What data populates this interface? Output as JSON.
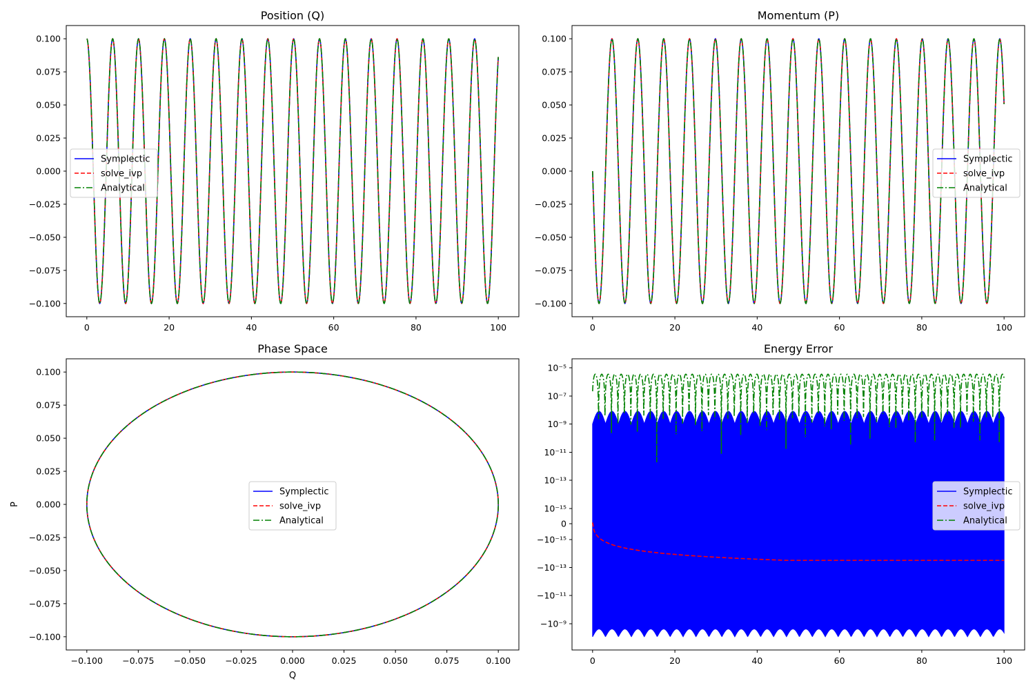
{
  "chart_data": [
    {
      "id": "position",
      "type": "line",
      "title": "Position (Q)",
      "xlabel": "",
      "ylabel": "",
      "xlim": [
        -5,
        105
      ],
      "ylim": [
        -0.11,
        0.11
      ],
      "xticks": [
        0,
        20,
        40,
        60,
        80,
        100
      ],
      "xtick_labels": [
        "0",
        "20",
        "40",
        "60",
        "80",
        "100"
      ],
      "yticks": [
        0.1,
        0.075,
        0.05,
        0.025,
        0.0,
        -0.025,
        -0.05,
        -0.075,
        -0.1
      ],
      "ytick_labels": [
        "0.100",
        "0.075",
        "0.050",
        "0.025",
        "0.000",
        "−0.025",
        "−0.050",
        "−0.075",
        "−0.100"
      ],
      "grid": false,
      "legend": "center-left",
      "x_range": [
        0,
        100
      ],
      "series": [
        {
          "name": "Symplectic",
          "style": "solid",
          "color": "#0000ff",
          "formula": "0.1*cos(t)"
        },
        {
          "name": "solve_ivp",
          "style": "dashed",
          "color": "#ff0000",
          "formula": "0.1*cos(t)"
        },
        {
          "name": "Analytical",
          "style": "dashdot",
          "color": "#008000",
          "formula": "0.1*cos(t)"
        }
      ]
    },
    {
      "id": "momentum",
      "type": "line",
      "title": "Momentum (P)",
      "xlabel": "",
      "ylabel": "",
      "xlim": [
        -5,
        105
      ],
      "ylim": [
        -0.11,
        0.11
      ],
      "xticks": [
        0,
        20,
        40,
        60,
        80,
        100
      ],
      "xtick_labels": [
        "0",
        "20",
        "40",
        "60",
        "80",
        "100"
      ],
      "yticks": [
        0.1,
        0.075,
        0.05,
        0.025,
        0.0,
        -0.025,
        -0.05,
        -0.075,
        -0.1
      ],
      "ytick_labels": [
        "0.100",
        "0.075",
        "0.050",
        "0.025",
        "0.000",
        "−0.025",
        "−0.050",
        "−0.075",
        "−0.100"
      ],
      "grid": false,
      "legend": "center-right",
      "x_range": [
        0,
        100
      ],
      "series": [
        {
          "name": "Symplectic",
          "style": "solid",
          "color": "#0000ff",
          "formula": "-0.1*sin(t)"
        },
        {
          "name": "solve_ivp",
          "style": "dashed",
          "color": "#ff0000",
          "formula": "-0.1*sin(t)"
        },
        {
          "name": "Analytical",
          "style": "dashdot",
          "color": "#008000",
          "formula": "-0.1*sin(t)"
        }
      ]
    },
    {
      "id": "phase",
      "type": "line",
      "title": "Phase Space",
      "xlabel": "Q",
      "ylabel": "P",
      "xlim": [
        -0.11,
        0.11
      ],
      "ylim": [
        -0.11,
        0.11
      ],
      "xticks": [
        -0.1,
        -0.075,
        -0.05,
        -0.025,
        0.0,
        0.025,
        0.05,
        0.075,
        0.1
      ],
      "xtick_labels": [
        "−0.100",
        "−0.075",
        "−0.050",
        "−0.025",
        "0.000",
        "0.025",
        "0.050",
        "0.075",
        "0.100"
      ],
      "yticks": [
        0.1,
        0.075,
        0.05,
        0.025,
        0.0,
        -0.025,
        -0.05,
        -0.075,
        -0.1
      ],
      "ytick_labels": [
        "0.100",
        "0.075",
        "0.050",
        "0.025",
        "0.000",
        "−0.025",
        "−0.050",
        "−0.075",
        "−0.100"
      ],
      "grid": false,
      "legend": "center",
      "series": [
        {
          "name": "Symplectic",
          "style": "solid",
          "color": "#0000ff",
          "formula": "circle r=0.1"
        },
        {
          "name": "solve_ivp",
          "style": "dashed",
          "color": "#ff0000",
          "formula": "circle r=0.1"
        },
        {
          "name": "Analytical",
          "style": "dashdot",
          "color": "#008000",
          "formula": "circle r=0.1"
        }
      ]
    },
    {
      "id": "energy",
      "type": "line",
      "title": "Energy Error",
      "xlabel": "",
      "ylabel": "",
      "xlim": [
        -5,
        105
      ],
      "yscale": "symlog",
      "xticks": [
        0,
        20,
        40,
        60,
        80,
        100
      ],
      "xtick_labels": [
        "0",
        "20",
        "40",
        "60",
        "80",
        "100"
      ],
      "ytick_labels": [
        "10⁻⁵",
        "10⁻⁷",
        "10⁻⁹",
        "10⁻¹¹",
        "10⁻¹³",
        "10⁻¹⁵",
        "0",
        "−10⁻¹⁵",
        "−10⁻¹³",
        "−10⁻¹¹",
        "−10⁻⁹"
      ],
      "grid": false,
      "legend": "center-right",
      "series": [
        {
          "name": "Symplectic",
          "style": "solid",
          "color": "#0000ff",
          "range_max": 8e-09,
          "range_min": -2e-09
        },
        {
          "name": "solve_ivp",
          "style": "dashed",
          "color": "#ff0000",
          "start": 1e-16,
          "end": -3e-14
        },
        {
          "name": "Analytical",
          "style": "dashdot",
          "color": "#008000",
          "peak": 3.5e-06,
          "dip_min": 1e-13
        }
      ]
    }
  ]
}
